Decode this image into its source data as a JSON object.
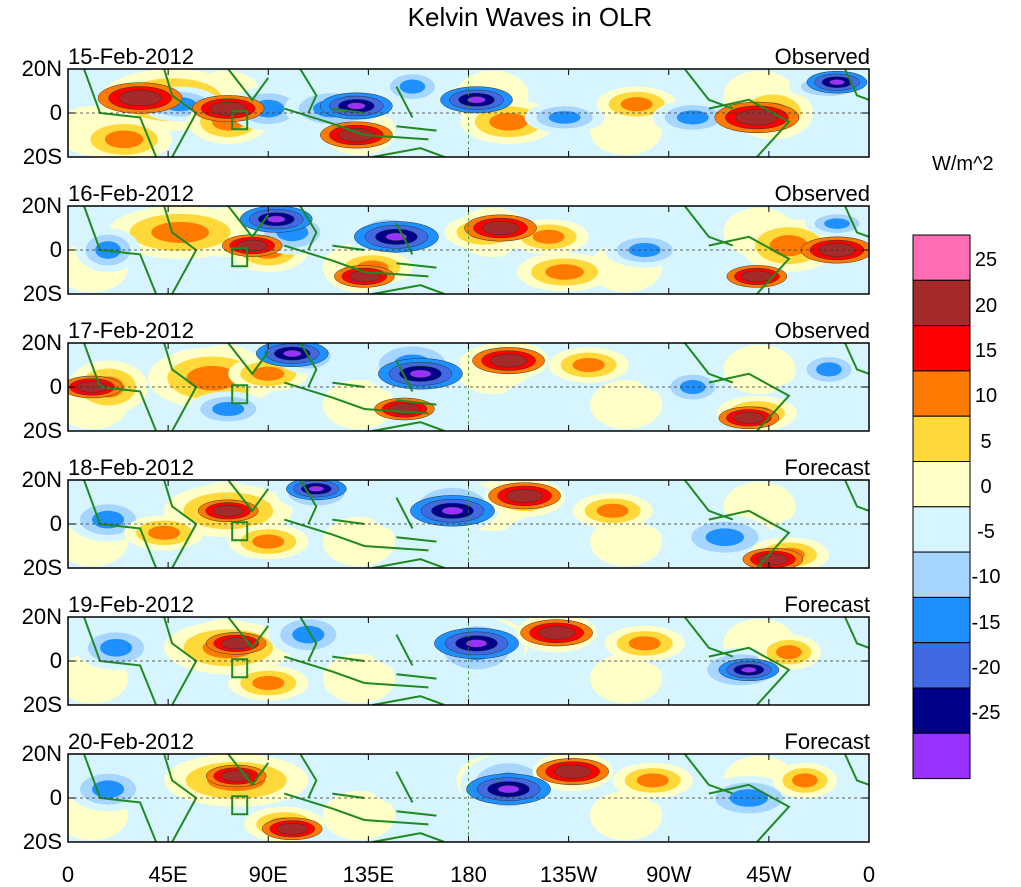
{
  "title": "Kelvin Waves in OLR",
  "units": "W/m^2",
  "x_axis_labels": [
    "0",
    "45E",
    "90E",
    "135E",
    "180",
    "135W",
    "90W",
    "45W",
    "0"
  ],
  "y_axis_labels": [
    "20N",
    "0",
    "20S"
  ],
  "panels": [
    {
      "date": "15-Feb-2012",
      "kind": "Observed"
    },
    {
      "date": "16-Feb-2012",
      "kind": "Observed"
    },
    {
      "date": "17-Feb-2012",
      "kind": "Observed"
    },
    {
      "date": "18-Feb-2012",
      "kind": "Forecast"
    },
    {
      "date": "19-Feb-2012",
      "kind": "Forecast"
    },
    {
      "date": "20-Feb-2012",
      "kind": "Forecast"
    }
  ],
  "colorbar": {
    "labels": [
      "25",
      "20",
      "15",
      "10",
      "5",
      "0",
      "-5",
      "-10",
      "-15",
      "-20",
      "-25"
    ],
    "colors": [
      "#ff6eb4",
      "#a52a2a",
      "#ff0000",
      "#ff7a00",
      "#ffd83a",
      "#ffffc8",
      "#d6f5ff",
      "#a6d6ff",
      "#1e90ff",
      "#4169e1",
      "#00008b",
      "#9a32ff"
    ]
  }
}
